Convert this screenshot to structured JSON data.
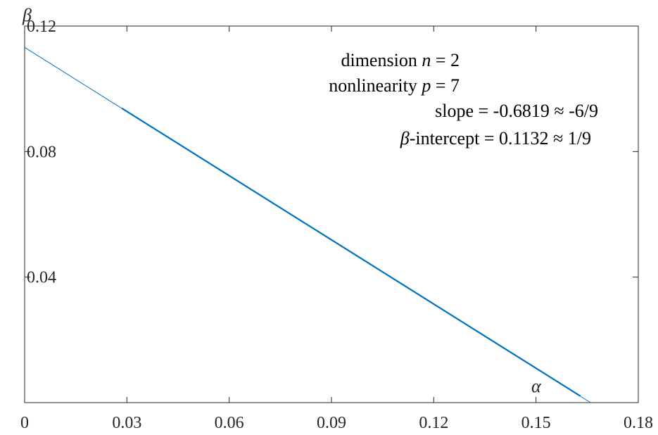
{
  "chart_data": {
    "type": "line",
    "title": "",
    "xlabel": "α",
    "ylabel": "β",
    "xlim": [
      0,
      0.18
    ],
    "ylim": [
      0,
      0.12
    ],
    "xticks": [
      0,
      0.03,
      0.06,
      0.09,
      0.12,
      0.15,
      0.18
    ],
    "yticks": [
      0.04,
      0.08,
      0.12
    ],
    "xtick_labels": [
      "0",
      "0.03",
      "0.06",
      "0.09",
      "0.12",
      "0.15",
      "0.18"
    ],
    "ytick_labels": [
      "0.04",
      "0.08",
      "0.12"
    ],
    "grid": false,
    "series": [
      {
        "color": "#0072BD",
        "line_x": [
          0,
          0.166
        ],
        "line_y": [
          0.1132,
          0.0
        ],
        "data_x": [
          0.0285,
          0.163
        ],
        "data_y": [
          0.0938,
          0.0021
        ]
      }
    ],
    "annotations": {
      "line1": {
        "prefix": "dimension ",
        "var": "n",
        "suffix": " =  2"
      },
      "line2": {
        "prefix": "nonlinearity ",
        "var": "p",
        "suffix": " =  7"
      },
      "line3": {
        "text": "slope = -0.6819 ≈ -6/9"
      },
      "line4": {
        "var": "β",
        "suffix": "-intercept =  0.1132 ≈  1/9"
      }
    }
  }
}
